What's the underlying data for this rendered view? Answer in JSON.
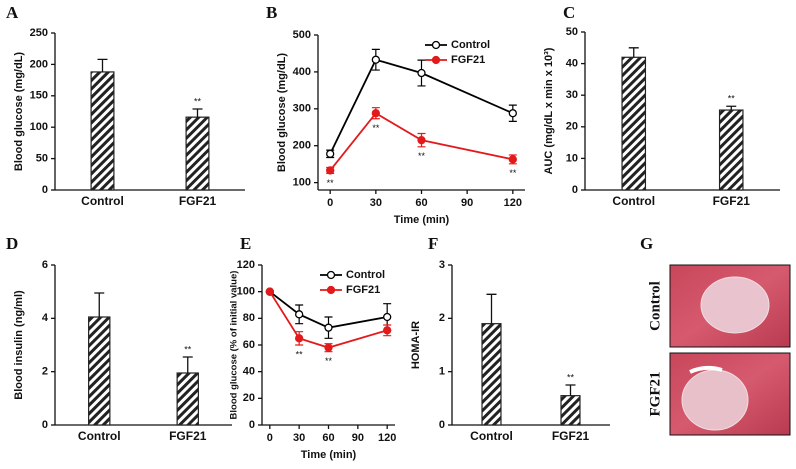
{
  "chart_data": [
    {
      "label": "A",
      "type": "bar",
      "ylabel": "Blood glucose (mg/dL)",
      "categories": [
        "Control",
        "FGF21"
      ],
      "values": [
        188,
        116
      ],
      "errors": [
        20,
        13
      ],
      "significance": [
        null,
        "**"
      ],
      "ylim": [
        0,
        250
      ],
      "yticks": [
        0,
        50,
        100,
        150,
        200,
        250
      ],
      "color": "#222222"
    },
    {
      "label": "B",
      "type": "line",
      "ylabel": "Blood glucose (mg/dL)",
      "xlabel": "Time (min)",
      "x": [
        0,
        30,
        60,
        120
      ],
      "xlim": [
        -8,
        128
      ],
      "xticks": [
        0,
        30,
        60,
        90,
        120
      ],
      "ylim": [
        80,
        500
      ],
      "yticks": [
        100,
        200,
        300,
        400,
        500
      ],
      "legend": "upper right",
      "series": [
        {
          "name": "Control",
          "color": "#000000",
          "marker_fill": "#ffffff",
          "values": [
            178,
            433,
            397,
            288
          ],
          "errors": [
            10,
            28,
            35,
            22
          ],
          "significance": [
            null,
            null,
            null,
            null
          ]
        },
        {
          "name": "FGF21",
          "color": "#e31a1c",
          "marker_fill": "#e31a1c",
          "values": [
            133,
            288,
            215,
            163
          ],
          "errors": [
            8,
            15,
            18,
            12
          ],
          "significance": [
            "**",
            "**",
            "**",
            "**"
          ]
        }
      ]
    },
    {
      "label": "C",
      "type": "bar",
      "ylabel": "AUC (mg/dL x min x 10³)",
      "categories": [
        "Control",
        "FGF21"
      ],
      "values": [
        42,
        25.3
      ],
      "errors": [
        3,
        1.2
      ],
      "significance": [
        null,
        "**"
      ],
      "ylim": [
        0,
        50
      ],
      "yticks": [
        0,
        10,
        20,
        30,
        40,
        50
      ],
      "color": "#222222"
    },
    {
      "label": "D",
      "type": "bar",
      "ylabel": "Blood insulin (ng/ml)",
      "categories": [
        "Control",
        "FGF21"
      ],
      "values": [
        4.05,
        1.95
      ],
      "errors": [
        0.9,
        0.6
      ],
      "significance": [
        null,
        "**"
      ],
      "ylim": [
        0,
        6
      ],
      "yticks": [
        0,
        2,
        4,
        6
      ],
      "color": "#222222"
    },
    {
      "label": "E",
      "type": "line",
      "ylabel": "Blood glucose (% of initial value)",
      "xlabel": "Time (min)",
      "x": [
        0,
        30,
        60,
        120
      ],
      "xlim": [
        -8,
        128
      ],
      "xticks": [
        0,
        30,
        60,
        90,
        120
      ],
      "ylim": [
        0,
        120
      ],
      "yticks": [
        0,
        20,
        40,
        60,
        80,
        100,
        120
      ],
      "legend": "upper right",
      "series": [
        {
          "name": "Control",
          "color": "#000000",
          "marker_fill": "#ffffff",
          "values": [
            100,
            83,
            73,
            81
          ],
          "errors": [
            0,
            7,
            8,
            10
          ],
          "significance": [
            null,
            null,
            null,
            null
          ]
        },
        {
          "name": "FGF21",
          "color": "#e31a1c",
          "marker_fill": "#e31a1c",
          "values": [
            100,
            65,
            58,
            71
          ],
          "errors": [
            0,
            5,
            3,
            4
          ],
          "significance": [
            null,
            "**",
            "**",
            null
          ]
        }
      ]
    },
    {
      "label": "F",
      "type": "bar",
      "ylabel": "HOMA-IR",
      "categories": [
        "Control",
        "FGF21"
      ],
      "values": [
        1.9,
        0.55
      ],
      "errors": [
        0.55,
        0.2
      ],
      "significance": [
        null,
        "**"
      ],
      "ylim": [
        0,
        3
      ],
      "yticks": [
        0,
        1,
        2,
        3
      ],
      "color": "#222222"
    },
    {
      "label": "G",
      "type": "image",
      "categories": [
        "Control",
        "FGF21"
      ]
    }
  ]
}
